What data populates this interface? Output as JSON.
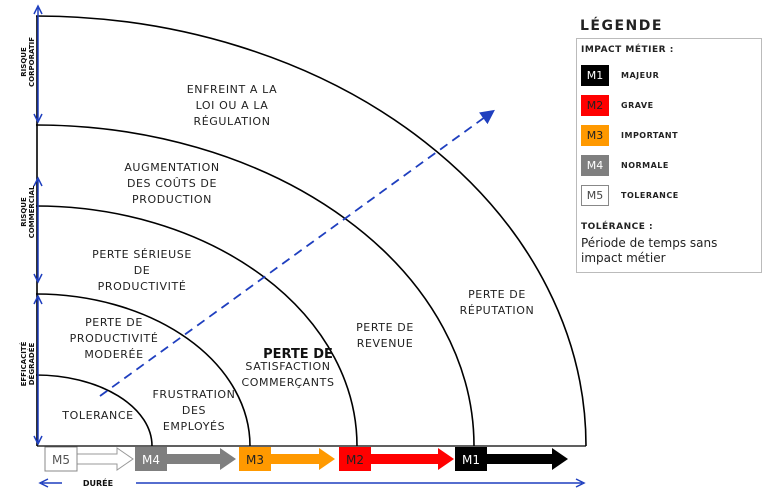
{
  "zones": [
    {
      "id": "tolerance",
      "lines": [
        "TOLERANCE"
      ]
    },
    {
      "id": "frustration",
      "lines": [
        "FRUSTRATION",
        "DES",
        "EMPLOYÉS"
      ]
    },
    {
      "id": "perte-productivite-moderee",
      "lines": [
        "PERTE DE",
        "PRODUCTIVITÉ",
        "MODERÉE"
      ]
    },
    {
      "id": "perte-satisfaction",
      "lines": [
        "SATISFACTION",
        "COMMERÇANTS"
      ],
      "overlay": "PERTE DE"
    },
    {
      "id": "perte-serieuse",
      "lines": [
        "PERTE SÉRIEUSE",
        "DE",
        "PRODUCTIVITÉ"
      ]
    },
    {
      "id": "perte-revenue",
      "lines": [
        "PERTE DE",
        "REVENUE"
      ]
    },
    {
      "id": "augmentation-couts",
      "lines": [
        "AUGMENTATION",
        "DES COÛTS DE",
        "PRODUCTION"
      ]
    },
    {
      "id": "perte-reputation",
      "lines": [
        "PERTE DE",
        "RÉPUTATION"
      ]
    },
    {
      "id": "enfreint-loi",
      "lines": [
        "ENFREINT A LA",
        "LOI OU A LA",
        "RÉGULATION"
      ]
    }
  ],
  "axis": {
    "vertical": [
      "RISQUE CORPORATIF",
      "RISQUE COMMERCIAL",
      "EFFICACITÉ DÉGRADÉE"
    ],
    "horizontal": "DURÉE"
  },
  "levels": [
    {
      "code": "M5",
      "color": "#ffffff",
      "arrow_color": "#ffffff",
      "text_color": "#555555"
    },
    {
      "code": "M4",
      "color": "#7f7f7f",
      "arrow_color": "#7f7f7f",
      "text_color": "#ffffff"
    },
    {
      "code": "M3",
      "color": "#ff9900",
      "arrow_color": "#ff9900",
      "text_color": "#222222"
    },
    {
      "code": "M2",
      "color": "#ff0000",
      "arrow_color": "#ff0000",
      "text_color": "#222222"
    },
    {
      "code": "M1",
      "color": "#000000",
      "arrow_color": "#000000",
      "text_color": "#ffffff"
    }
  ],
  "legend": {
    "title": "LÉGENDE",
    "subtitle": "IMPACT MÉTIER :",
    "items": [
      {
        "code": "M1",
        "label": "MAJEUR",
        "color": "#000000",
        "text_color": "#ffffff"
      },
      {
        "code": "M2",
        "label": "GRAVE",
        "color": "#ff0000",
        "text_color": "#222222"
      },
      {
        "code": "M3",
        "label": "IMPORTANT",
        "color": "#ff9900",
        "text_color": "#222222"
      },
      {
        "code": "M4",
        "label": "NORMALE",
        "color": "#7f7f7f",
        "text_color": "#ffffff"
      },
      {
        "code": "M5",
        "label": "TOLERANCE",
        "color": "#ffffff",
        "text_color": "#444444"
      }
    ],
    "tolerance_title": "TOLÉRANCE :",
    "tolerance_text": "Période de temps sans impact métier"
  },
  "colors": {
    "axis": "#1f3fbf",
    "trend": "#1f3fbf",
    "arc": "#000000"
  }
}
